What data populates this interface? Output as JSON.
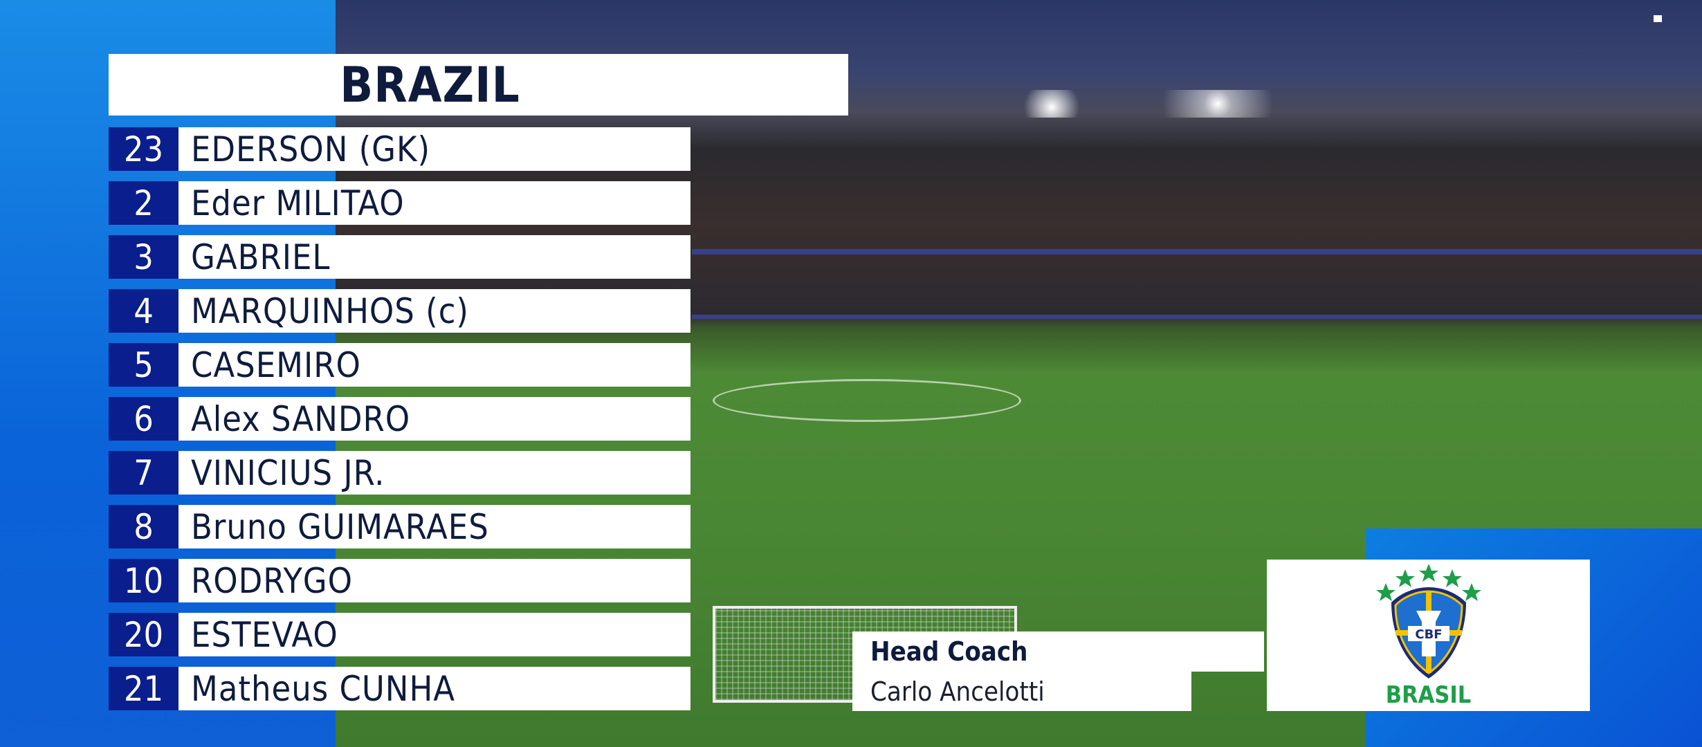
{
  "team": {
    "title": "BRAZIL"
  },
  "lineup": [
    {
      "number": "23",
      "name": "EDERSON (GK)"
    },
    {
      "number": "2",
      "name": "Eder MILITAO"
    },
    {
      "number": "3",
      "name": "GABRIEL"
    },
    {
      "number": "4",
      "name": "MARQUINHOS (c)"
    },
    {
      "number": "5",
      "name": "CASEMIRO"
    },
    {
      "number": "6",
      "name": "Alex SANDRO"
    },
    {
      "number": "7",
      "name": "VINICIUS JR."
    },
    {
      "number": "8",
      "name": "Bruno GUIMARAES"
    },
    {
      "number": "10",
      "name": "RODRYGO"
    },
    {
      "number": "20",
      "name": "ESTEVAO"
    },
    {
      "number": "21",
      "name": "Matheus CUNHA"
    }
  ],
  "coach": {
    "label": "Head Coach",
    "name": "Carlo Ancelotti"
  },
  "crest": {
    "monogram": "CBF",
    "caption": "BRASIL",
    "icon": "cbf-crest-icon"
  },
  "colors": {
    "panel_blue": "#0a63d8",
    "number_navy": "#0b1e8e",
    "text_navy": "#0f1b3d",
    "crest_green": "#1e9e48",
    "crest_yellow": "#f2c300"
  }
}
